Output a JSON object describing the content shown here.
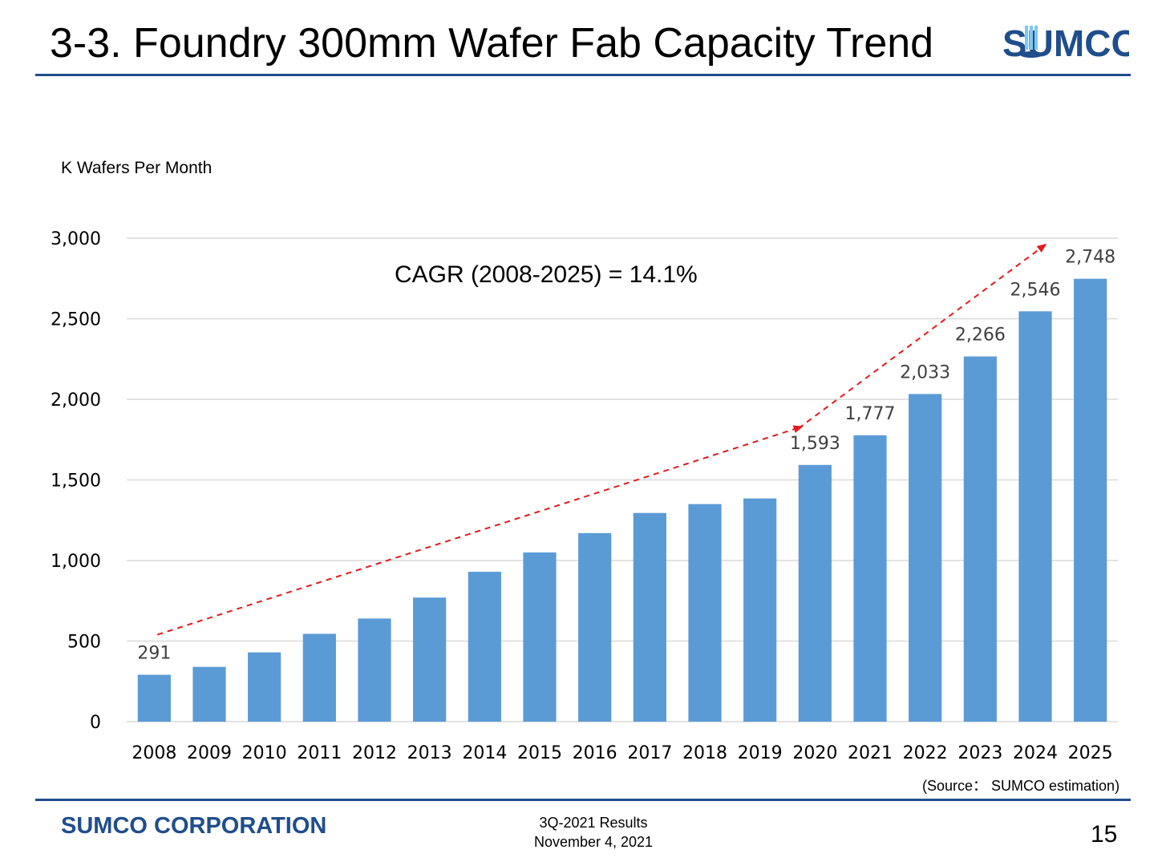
{
  "slide": {
    "title": "3-3. Foundry 300mm Wafer Fab Capacity Trend",
    "logo_text": "SUMCO",
    "unit_label": "K Wafers Per Month",
    "source_note": "(Source： SUMCO estimation)",
    "footer": {
      "company": "SUMCO CORPORATION",
      "results_line1": "3Q-2021 Results",
      "results_line2": "November 4, 2021",
      "page_number": "15"
    }
  },
  "colors": {
    "bar": "#5b9bd5",
    "accent": "#1f4e8c",
    "arrow": "#e8191b",
    "grid": "#d9d9d9"
  },
  "chart_data": {
    "type": "bar",
    "title": "",
    "xlabel": "",
    "ylabel": "K Wafers Per Month",
    "ylim": [
      0,
      3000
    ],
    "yticks": [
      0,
      500,
      1000,
      1500,
      2000,
      2500,
      3000
    ],
    "ytick_labels": [
      "0",
      "500",
      "1,000",
      "1,500",
      "2,000",
      "2,500",
      "3,000"
    ],
    "grid": true,
    "categories": [
      "2008",
      "2009",
      "2010",
      "2011",
      "2012",
      "2013",
      "2014",
      "2015",
      "2016",
      "2017",
      "2018",
      "2019",
      "2020",
      "2021",
      "2022",
      "2023",
      "2024",
      "2025"
    ],
    "values": [
      291,
      340,
      430,
      545,
      640,
      770,
      930,
      1050,
      1170,
      1295,
      1350,
      1385,
      1593,
      1777,
      2033,
      2266,
      2546,
      2748
    ],
    "data_labels": [
      {
        "category": "2008",
        "text": "291"
      },
      {
        "category": "2020",
        "text": "1,593"
      },
      {
        "category": "2021",
        "text": "1,777"
      },
      {
        "category": "2022",
        "text": "2,033"
      },
      {
        "category": "2023",
        "text": "2,266"
      },
      {
        "category": "2024",
        "text": "2,546"
      },
      {
        "category": "2025",
        "text": "2,748"
      }
    ],
    "annotation": "CAGR (2008-2025) = 14.1%"
  }
}
